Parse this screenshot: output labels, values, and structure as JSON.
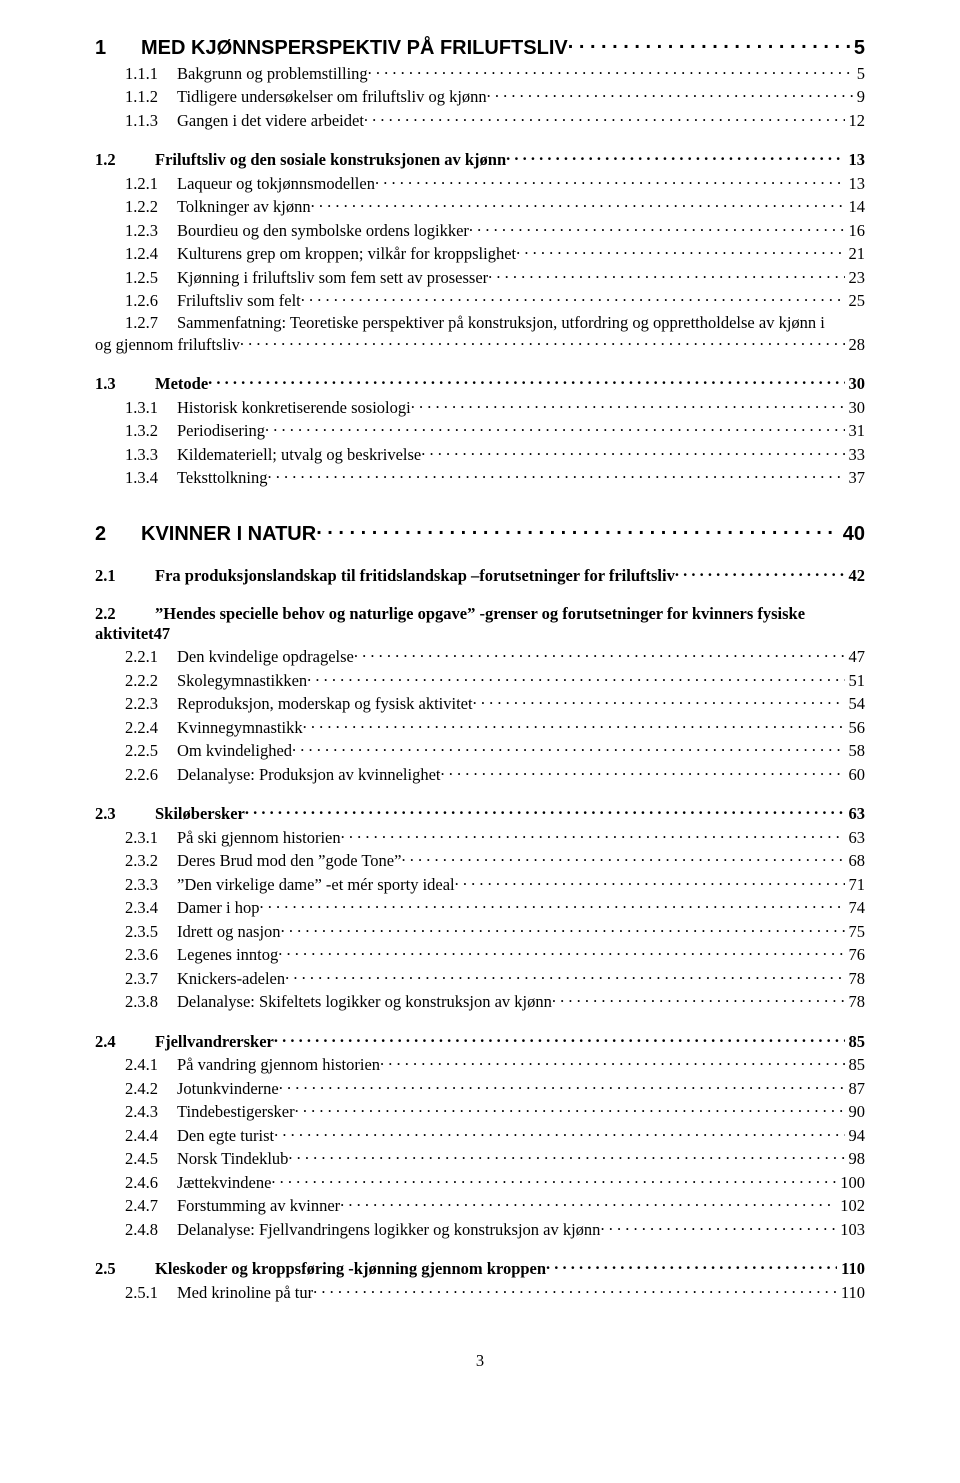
{
  "page_number": "3",
  "font_sizes": {
    "lvl1": 20,
    "lvl2": 16.5,
    "lvl3": 16.5
  },
  "colors": {
    "text": "#000000",
    "bg": "#ffffff"
  },
  "toc": [
    {
      "level": 1,
      "num": "1",
      "title": "MED KJØNNSPERSPEKTIV PÅ FRILUFTSLIV",
      "page": "5"
    },
    {
      "level": 2,
      "num": "1.1.1",
      "title": "Bakgrunn og problemstilling",
      "page": "5",
      "as_l3": true
    },
    {
      "level": 3,
      "num": "1.1.2",
      "title": "Tidligere undersøkelser om friluftsliv og kjønn",
      "page": "9"
    },
    {
      "level": 3,
      "num": "1.1.3",
      "title": "Gangen i det videre arbeidet",
      "page": "12"
    },
    {
      "level": 2,
      "num": "1.2",
      "title": "Friluftsliv og den sosiale konstruksjonen av kjønn",
      "page": "13"
    },
    {
      "level": 3,
      "num": "1.2.1",
      "title": "Laqueur og tokjønnsmodellen",
      "page": "13"
    },
    {
      "level": 3,
      "num": "1.2.2",
      "title": "Tolkninger av kjønn",
      "page": "14"
    },
    {
      "level": 3,
      "num": "1.2.3",
      "title": "Bourdieu og den symbolske ordens logikker",
      "page": "16"
    },
    {
      "level": 3,
      "num": "1.2.4",
      "title": "Kulturens grep om kroppen; vilkår for kroppslighet",
      "page": "21"
    },
    {
      "level": 3,
      "num": "1.2.5",
      "title": "Kjønning i friluftsliv som fem sett av prosesser",
      "page": "23"
    },
    {
      "level": 3,
      "num": "1.2.6",
      "title": "Friluftsliv som felt",
      "page": "25"
    },
    {
      "level": 3,
      "num": "1.2.7",
      "title_l1": "Sammenfatning: Teoretiske perspektiver på konstruksjon, utfordring og opprettholdelse av kjønn i",
      "title_l2": "og gjennom friluftsliv",
      "page": "28",
      "multiline": true
    },
    {
      "level": 2,
      "num": "1.3",
      "title": "Metode",
      "page": "30"
    },
    {
      "level": 3,
      "num": "1.3.1",
      "title": "Historisk konkretiserende sosiologi",
      "page": "30"
    },
    {
      "level": 3,
      "num": "1.3.2",
      "title": "Periodisering",
      "page": "31"
    },
    {
      "level": 3,
      "num": "1.3.3",
      "title": "Kildemateriell; utvalg og beskrivelse",
      "page": "33"
    },
    {
      "level": 3,
      "num": "1.3.4",
      "title": "Teksttolkning",
      "page": "37"
    },
    {
      "level": 1,
      "num": "2",
      "title": "KVINNER I NATUR",
      "page": "40"
    },
    {
      "level": 2,
      "num": "2.1",
      "title": "Fra produksjonslandskap til fritidslandskap –forutsetninger for friluftsliv",
      "page": "42"
    },
    {
      "level": 2,
      "num": "2.2",
      "title_l1": "”Hendes specielle behov og naturlige opgave” -grenser og forutsetninger for kvinners fysiske",
      "title_l2": "aktivitet",
      "page_inline": "47",
      "multiline_heading": true
    },
    {
      "level": 3,
      "num": "2.2.1",
      "title": "Den kvindelige opdragelse",
      "page": "47"
    },
    {
      "level": 3,
      "num": "2.2.2",
      "title": "Skolegymnastikken",
      "page": "51"
    },
    {
      "level": 3,
      "num": "2.2.3",
      "title": "Reproduksjon, moderskap og fysisk aktivitet",
      "page": "54"
    },
    {
      "level": 3,
      "num": "2.2.4",
      "title": "Kvinnegymnastikk",
      "page": "56"
    },
    {
      "level": 3,
      "num": "2.2.5",
      "title": "Om kvindelighed",
      "page": "58"
    },
    {
      "level": 3,
      "num": "2.2.6",
      "title": "Delanalyse: Produksjon av kvinnelighet",
      "page": "60"
    },
    {
      "level": 2,
      "num": "2.3",
      "title": "Skiløbersker",
      "page": "63"
    },
    {
      "level": 3,
      "num": "2.3.1",
      "title": "På ski gjennom historien",
      "page": "63"
    },
    {
      "level": 3,
      "num": "2.3.2",
      "title": "Deres Brud mod den ”gode Tone”",
      "page": "68"
    },
    {
      "level": 3,
      "num": "2.3.3",
      "title": "”Den virkelige dame” -et mér sporty ideal",
      "page": "71"
    },
    {
      "level": 3,
      "num": "2.3.4",
      "title": "Damer i hop",
      "page": "74"
    },
    {
      "level": 3,
      "num": "2.3.5",
      "title": "Idrett og nasjon",
      "page": "75"
    },
    {
      "level": 3,
      "num": "2.3.6",
      "title": "Legenes inntog",
      "page": "76"
    },
    {
      "level": 3,
      "num": "2.3.7",
      "title": "Knickers-adelen",
      "page": "78"
    },
    {
      "level": 3,
      "num": "2.3.8",
      "title": "Delanalyse: Skifeltets logikker og konstruksjon av kjønn",
      "page": "78"
    },
    {
      "level": 2,
      "num": "2.4",
      "title": "Fjellvandrersker",
      "page": "85"
    },
    {
      "level": 3,
      "num": "2.4.1",
      "title": "På vandring gjennom historien",
      "page": "85"
    },
    {
      "level": 3,
      "num": "2.4.2",
      "title": "Jotunkvinderne",
      "page": "87"
    },
    {
      "level": 3,
      "num": "2.4.3",
      "title": "Tindebestigersker",
      "page": "90"
    },
    {
      "level": 3,
      "num": "2.4.4",
      "title": "Den egte turist",
      "page": "94"
    },
    {
      "level": 3,
      "num": "2.4.5",
      "title": "Norsk Tindeklub",
      "page": "98"
    },
    {
      "level": 3,
      "num": "2.4.6",
      "title": "Jættekvindene",
      "page": "100"
    },
    {
      "level": 3,
      "num": "2.4.7",
      "title": "Forstumming av kvinner",
      "page": "102"
    },
    {
      "level": 3,
      "num": "2.4.8",
      "title": "Delanalyse: Fjellvandringens logikker og konstruksjon av kjønn",
      "page": "103"
    },
    {
      "level": 2,
      "num": "2.5",
      "title": "Kleskoder og kroppsføring -kjønning gjennom kroppen",
      "page": "110"
    },
    {
      "level": 3,
      "num": "2.5.1",
      "title": "Med krinoline på tur",
      "page": "110"
    }
  ]
}
